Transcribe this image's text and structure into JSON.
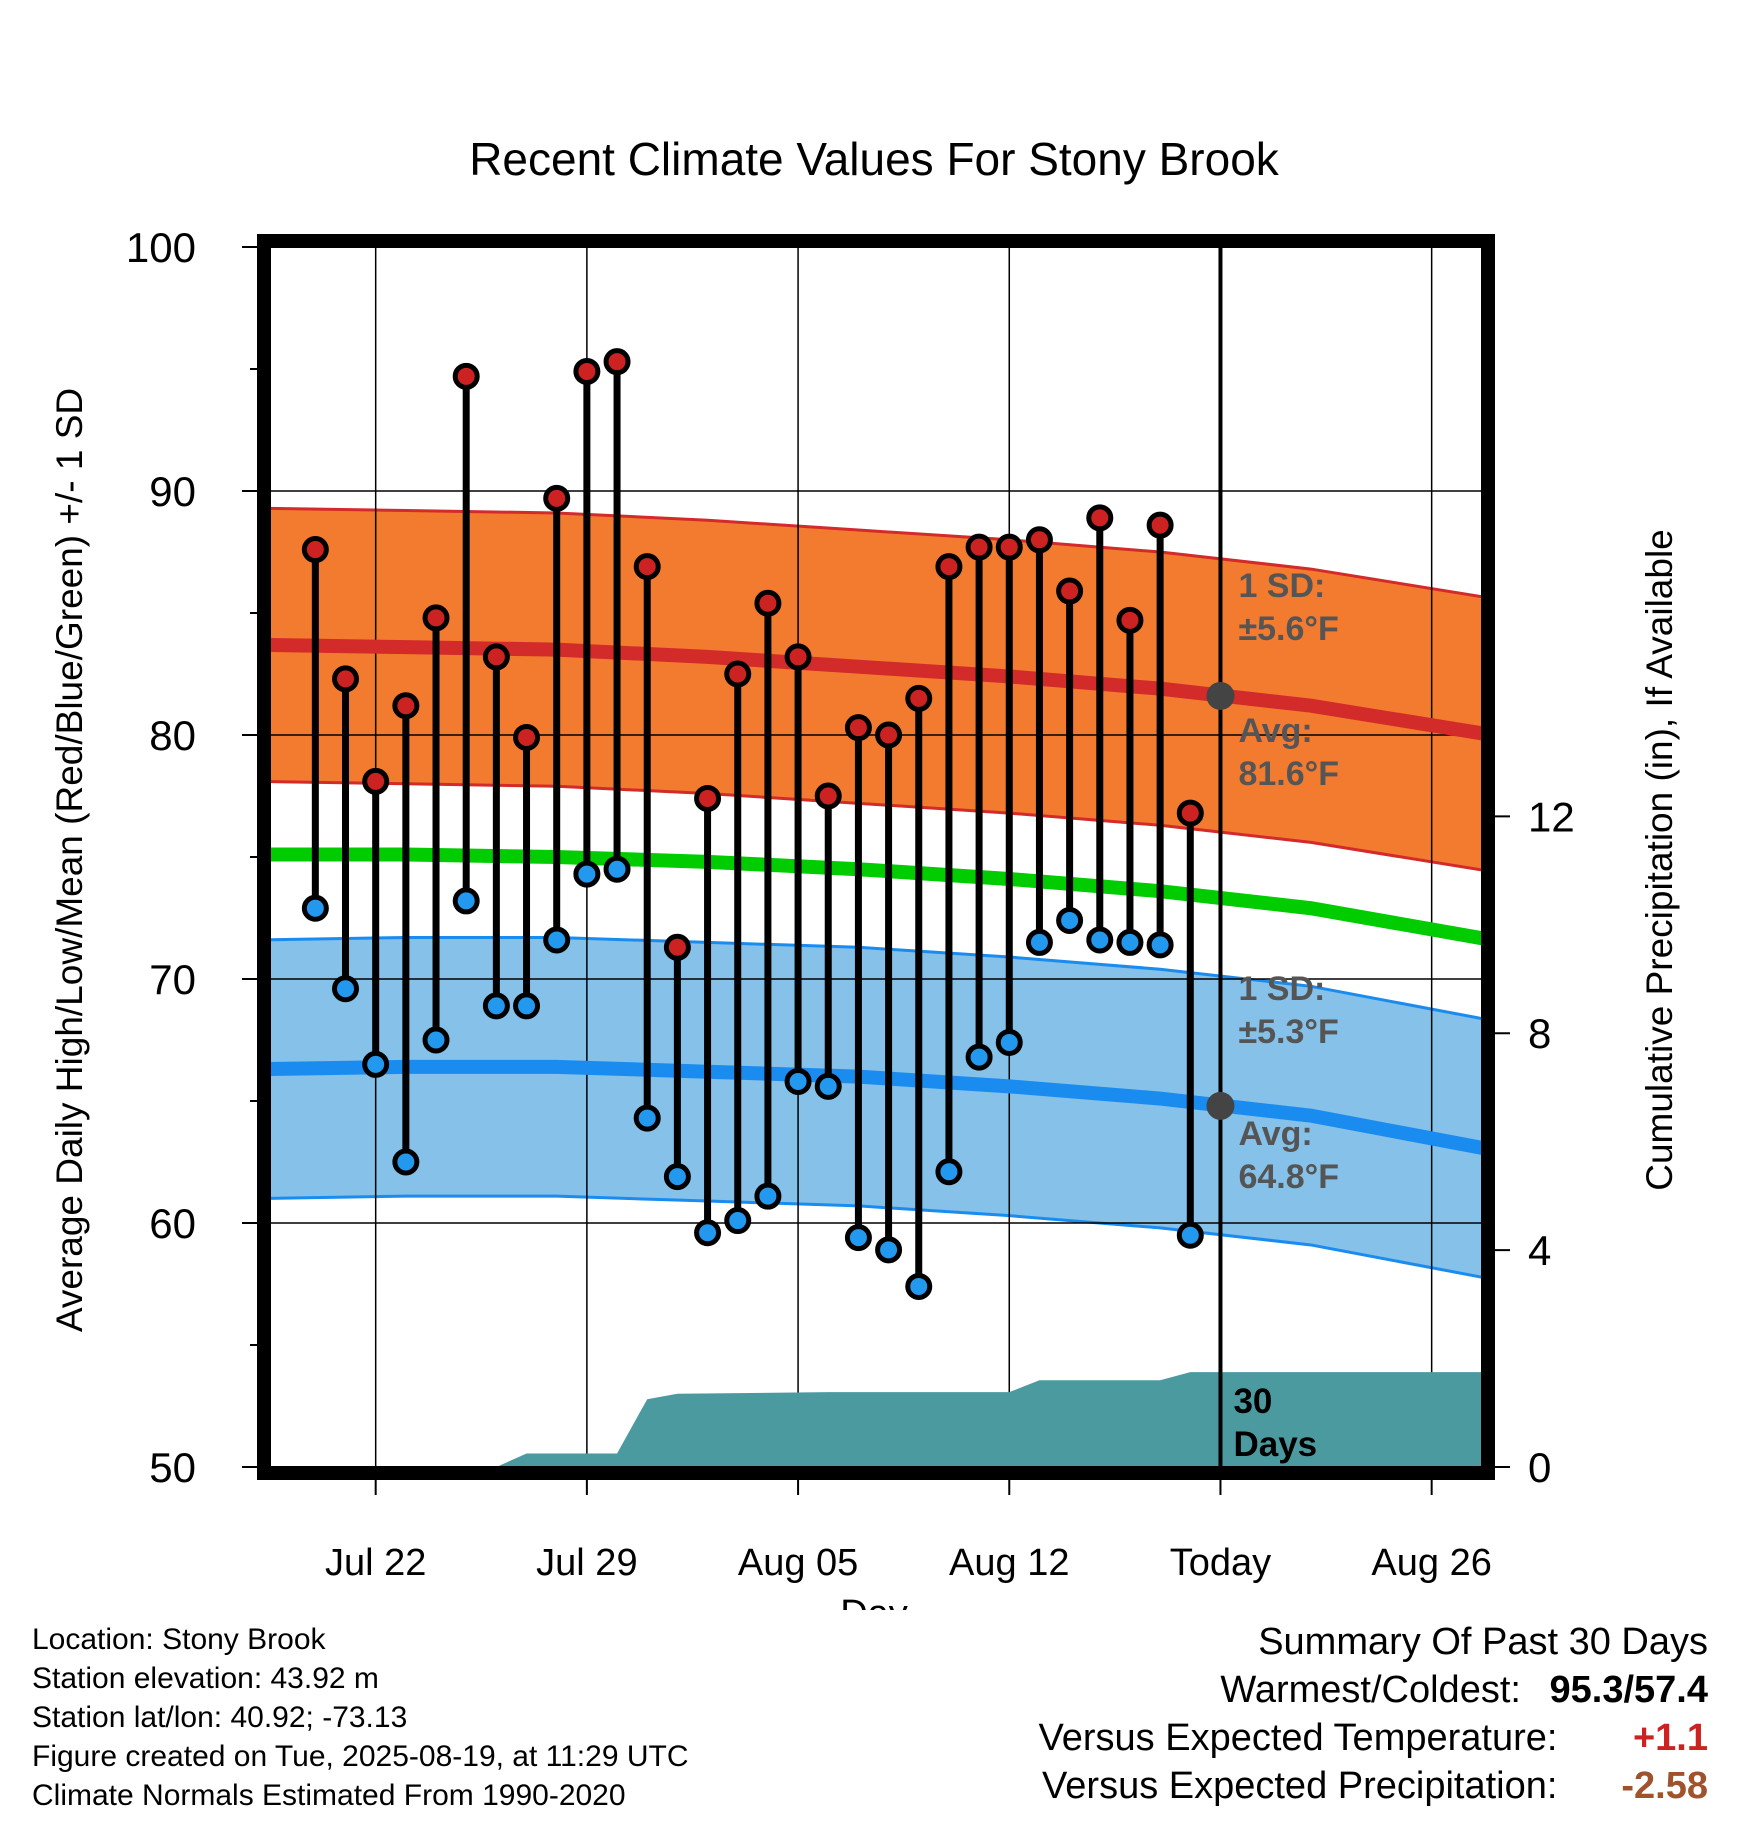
{
  "chart_data": {
    "type": "line",
    "title": "Recent Climate Values For Stony Brook",
    "xlabel": "Day",
    "ylabel": "Average Daily High/Low/Mean (Red/Blue/Green) +/- 1 SD",
    "y2label": "Cumulative Precipitation (in), If Available",
    "ylim": [
      50,
      100
    ],
    "y2lim": [
      0,
      22.5
    ],
    "y_ticks": [
      "50",
      "60",
      "70",
      "80",
      "90",
      "100"
    ],
    "y2_ticks": [
      "0",
      "4",
      "8",
      "12"
    ],
    "x_ticks": [
      "Jul 22",
      "Jul 29",
      "Aug 05",
      "Aug 12",
      "Today",
      "Aug 26"
    ],
    "x_range": [
      "2025-07-18",
      "2025-08-28"
    ],
    "today": "2025-08-19",
    "dates": [
      "2025-07-20",
      "2025-07-21",
      "2025-07-22",
      "2025-07-23",
      "2025-07-24",
      "2025-07-25",
      "2025-07-26",
      "2025-07-27",
      "2025-07-28",
      "2025-07-29",
      "2025-07-30",
      "2025-07-31",
      "2025-08-01",
      "2025-08-02",
      "2025-08-03",
      "2025-08-04",
      "2025-08-05",
      "2025-08-06",
      "2025-08-07",
      "2025-08-08",
      "2025-08-09",
      "2025-08-10",
      "2025-08-11",
      "2025-08-12",
      "2025-08-13",
      "2025-08-14",
      "2025-08-15",
      "2025-08-16",
      "2025-08-17",
      "2025-08-18"
    ],
    "series": [
      {
        "name": "High",
        "color": "#cc2222",
        "values": [
          87.6,
          82.3,
          78.1,
          81.2,
          84.8,
          94.7,
          83.2,
          79.9,
          89.7,
          94.9,
          95.3,
          86.9,
          71.3,
          77.4,
          82.5,
          85.4,
          83.2,
          77.5,
          80.3,
          80.0,
          81.5,
          86.9,
          87.7,
          87.7,
          88.0,
          85.9,
          88.9,
          84.7,
          88.6,
          76.8
        ]
      },
      {
        "name": "Low",
        "color": "#2299ee",
        "values": [
          72.9,
          69.6,
          66.5,
          62.5,
          67.5,
          73.2,
          68.9,
          68.9,
          71.6,
          74.3,
          74.5,
          64.3,
          61.9,
          59.6,
          60.1,
          61.1,
          65.8,
          65.6,
          59.4,
          58.9,
          57.4,
          62.1,
          66.8,
          67.4,
          71.5,
          72.4,
          71.6,
          71.5,
          71.4,
          59.5
        ]
      }
    ],
    "normals": {
      "dates": [
        "2025-07-18",
        "2025-07-23",
        "2025-07-28",
        "2025-08-02",
        "2025-08-07",
        "2025-08-12",
        "2025-08-17",
        "2025-08-22",
        "2025-08-28"
      ],
      "high_mean": [
        83.7,
        83.6,
        83.5,
        83.2,
        82.8,
        82.4,
        81.9,
        81.2,
        80.0
      ],
      "low_mean": [
        66.3,
        66.4,
        66.4,
        66.2,
        66.0,
        65.6,
        65.1,
        64.4,
        63.0
      ],
      "mean": [
        75.1,
        75.1,
        75.0,
        74.8,
        74.5,
        74.1,
        73.6,
        72.9,
        71.6
      ],
      "high_sd": 5.6,
      "low_sd": 5.3
    },
    "precip_cumulative": {
      "dates": [
        "2025-07-18",
        "2025-07-26",
        "2025-07-27",
        "2025-07-30",
        "2025-07-31",
        "2025-08-01",
        "2025-08-06",
        "2025-08-12",
        "2025-08-13",
        "2025-08-17",
        "2025-08-18",
        "2025-08-28"
      ],
      "values": [
        0.0,
        0.0,
        0.25,
        0.25,
        1.25,
        1.35,
        1.38,
        1.38,
        1.6,
        1.6,
        1.75,
        1.75
      ]
    },
    "annotations": {
      "high_sd_label": "1 SD:",
      "high_sd_value": "±5.6°F",
      "high_avg_label": "Avg:",
      "high_avg_value": "81.6°F",
      "low_sd_label": "1 SD:",
      "low_sd_value": "±5.3°F",
      "low_avg_label": "Avg:",
      "low_avg_value": "64.8°F",
      "days_line1": "30",
      "days_line2": "Days"
    },
    "colors": {
      "high_band": "#f27b30",
      "high_line": "#d32a2a",
      "low_band": "#85c1e8",
      "low_line": "#1a8cf0",
      "mean_line": "#00cc00",
      "precip": "#4a9aa0",
      "annotation": "#555555"
    }
  },
  "footer": {
    "location": "Location: Stony Brook",
    "elevation": "Station elevation: 43.92 m",
    "latlon": "Station lat/lon: 40.92; -73.13",
    "created": "Figure created on Tue, 2025-08-19, at 11:29 UTC",
    "normals": "Climate Normals Estimated From 1990-2020"
  },
  "summary": {
    "title": "Summary Of Past 30 Days",
    "warmest_label": "Warmest/Coldest:",
    "warmest_value": "95.3/57.4",
    "temp_label": "Versus Expected Temperature:",
    "temp_value": "+1.1",
    "temp_color": "#cc2222",
    "precip_label": "Versus Expected Precipitation:",
    "precip_value": "-2.58",
    "precip_color": "#a0522d"
  }
}
